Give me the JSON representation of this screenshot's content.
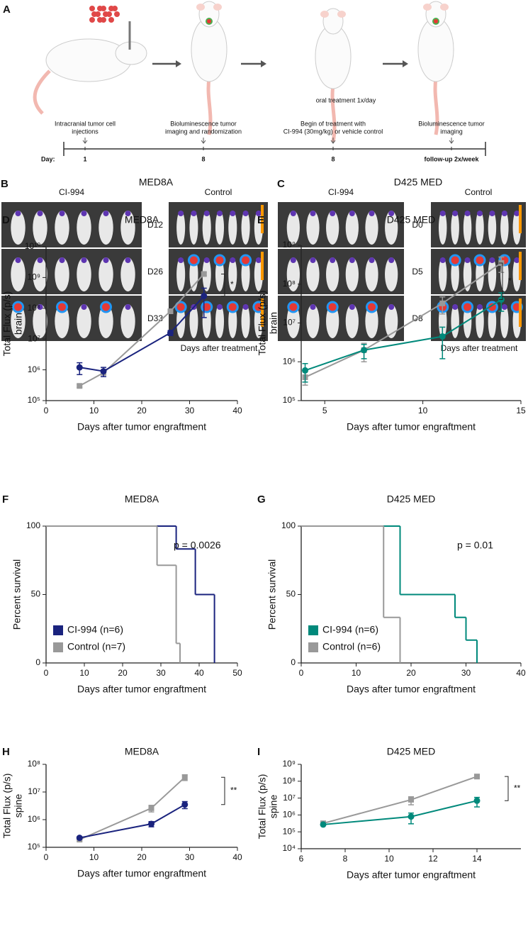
{
  "panel_a": {
    "label": "A",
    "steps": [
      [
        "Intracranial tumor cell",
        "injections"
      ],
      [
        "Bioluminescence tumor",
        "imaging and randomization"
      ],
      [
        "Begin of treatment with",
        "CI-994 (30mg/kg) or vehicle control"
      ],
      [
        "Bioluminescence tumor",
        "imaging"
      ]
    ],
    "oral": "oral treatment 1x/day",
    "timeline_label": "Day:",
    "days": [
      "1",
      "8",
      "8",
      "follow-up 2x/week"
    ]
  },
  "panel_b": {
    "label": "B",
    "title": "MED8A",
    "groups": [
      "CI-994",
      "Control"
    ],
    "days": [
      "D12",
      "D26",
      "D33"
    ],
    "footer": "Days after treatment"
  },
  "panel_c": {
    "label": "C",
    "title": "D425 MED",
    "groups": [
      "CI-994",
      "Control"
    ],
    "days": [
      "D0",
      "D5",
      "D8"
    ],
    "footer": "Days after treatment"
  },
  "chart_data": [
    {
      "type": "line",
      "panel_label": "D",
      "title": "MED8A",
      "ylabel": [
        "Total Flux (p/s)",
        "brain"
      ],
      "xlabel": "Days after tumor engraftment",
      "log_y": true,
      "xlim": [
        0,
        40
      ],
      "xticks": [
        0,
        10,
        20,
        30,
        40
      ],
      "ylim": [
        100000,
        10000000000
      ],
      "yticks": [
        {
          "value": 100000,
          "label": "10⁵"
        },
        {
          "value": 1000000,
          "label": "10⁶"
        },
        {
          "value": 10000000,
          "label": "10⁷"
        },
        {
          "value": 100000000,
          "label": "10⁸"
        },
        {
          "value": 1000000000,
          "label": "10⁹"
        },
        {
          "value": 10000000000,
          "label": "10¹⁰"
        }
      ],
      "annotation": "*",
      "series": [
        {
          "color": "#999999",
          "marker": "square",
          "x": [
            7,
            12,
            26,
            33
          ],
          "values": [
            300000,
            800000,
            80000000,
            1300000000
          ],
          "errors": [
            30000,
            100000,
            10000000,
            150000000
          ]
        },
        {
          "color": "#1a237e",
          "marker": "circle",
          "x": [
            7,
            12,
            26,
            33
          ],
          "values": [
            1200000,
            900000,
            16000000,
            250000000
          ],
          "errors": [
            500000,
            300000,
            3000000,
            200000000
          ]
        }
      ]
    },
    {
      "type": "line",
      "panel_label": "E",
      "title": "D425 MED",
      "ylabel": [
        "Total Flux (p/s)",
        "brain"
      ],
      "xlabel": "Days after tumor engraftment",
      "log_y": true,
      "xlim": [
        3.8,
        15
      ],
      "xticks": [
        5,
        10,
        15
      ],
      "ylim": [
        100000,
        1000000000
      ],
      "yticks": [
        {
          "value": 100000,
          "label": "10⁵"
        },
        {
          "value": 1000000,
          "label": "10⁶"
        },
        {
          "value": 10000000,
          "label": "10⁷"
        },
        {
          "value": 100000000,
          "label": "10⁸"
        },
        {
          "value": 1000000000,
          "label": "10⁹"
        }
      ],
      "annotation": "*",
      "series": [
        {
          "color": "#999999",
          "marker": "square",
          "x": [
            4,
            7,
            11,
            14
          ],
          "values": [
            400000,
            2000000,
            32000000,
            350000000
          ],
          "errors": [
            150000,
            1000000,
            15000000,
            150000000
          ]
        },
        {
          "color": "#00897b",
          "marker": "circle",
          "x": [
            4,
            7,
            11,
            14
          ],
          "values": [
            600000,
            2000000,
            4500000,
            40000000
          ],
          "errors": [
            300000,
            800000,
            3300000,
            20000000
          ]
        }
      ]
    },
    {
      "type": "survival",
      "panel_label": "F",
      "title": "MED8A",
      "ylabel": [
        "Percent survival"
      ],
      "xlabel": "Days after tumor engraftment",
      "xlim": [
        0,
        50
      ],
      "xticks": [
        0,
        10,
        20,
        30,
        40,
        50
      ],
      "ylim": [
        0,
        100
      ],
      "yticks": [
        0,
        50,
        100
      ],
      "annotation": "p = 0.0026",
      "legend": "lower left",
      "series": [
        {
          "name": "CI-994 (n=6)",
          "color": "#1a237e",
          "x": [
            0,
            34,
            39,
            44
          ],
          "values": [
            100,
            83.3,
            50,
            0
          ]
        },
        {
          "name": "Control (n=7)",
          "color": "#999999",
          "x": [
            0,
            29,
            34,
            35
          ],
          "values": [
            100,
            71.4,
            14.3,
            0
          ]
        }
      ]
    },
    {
      "type": "survival",
      "panel_label": "G",
      "title": "D425 MED",
      "ylabel": [
        "Percent survival"
      ],
      "xlabel": "Days after tumor engraftment",
      "xlim": [
        0,
        40
      ],
      "xticks": [
        0,
        10,
        20,
        30,
        40
      ],
      "ylim": [
        0,
        100
      ],
      "yticks": [
        0,
        50,
        100
      ],
      "annotation": "p = 0.01",
      "legend": "lower left",
      "series": [
        {
          "name": "CI-994 (n=6)",
          "color": "#00897b",
          "x": [
            0,
            18,
            28,
            30,
            32
          ],
          "values": [
            100,
            50,
            33.3,
            16.7,
            0
          ]
        },
        {
          "name": "Control (n=6)",
          "color": "#999999",
          "x": [
            0,
            15,
            18
          ],
          "values": [
            100,
            33.3,
            0
          ]
        }
      ]
    },
    {
      "type": "line",
      "panel_label": "H",
      "title": "MED8A",
      "ylabel": [
        "Total Flux (p/s)",
        "spine"
      ],
      "xlabel": "Days after tumor engraftment",
      "log_y": true,
      "xlim": [
        0,
        40
      ],
      "xticks": [
        0,
        10,
        20,
        30,
        40
      ],
      "ylim": [
        100000,
        100000000
      ],
      "yticks": [
        {
          "value": 100000,
          "label": "10⁵"
        },
        {
          "value": 1000000,
          "label": "10⁶"
        },
        {
          "value": 10000000,
          "label": "10⁷"
        },
        {
          "value": 100000000,
          "label": "10⁸"
        }
      ],
      "annotation": "**",
      "series": [
        {
          "color": "#999999",
          "marker": "square",
          "x": [
            7,
            22,
            29
          ],
          "values": [
            190000,
            2600000,
            34000000
          ],
          "errors": [
            10000,
            700000,
            8000000
          ]
        },
        {
          "color": "#1a237e",
          "marker": "circle",
          "x": [
            7,
            22,
            29
          ],
          "values": [
            220000,
            700000,
            3500000
          ],
          "errors": [
            20000,
            150000,
            1000000
          ]
        }
      ]
    },
    {
      "type": "line",
      "panel_label": "I",
      "title": "D425 MED",
      "ylabel": [
        "Total Flux (p/s)",
        "spine"
      ],
      "xlabel": "Days after tumor engraftment",
      "log_y": true,
      "xlim": [
        6,
        16
      ],
      "xticks": [
        6,
        8,
        10,
        12,
        14
      ],
      "ylim": [
        10000,
        1000000000
      ],
      "yticks": [
        {
          "value": 10000,
          "label": "10⁴"
        },
        {
          "value": 100000,
          "label": "10⁵"
        },
        {
          "value": 1000000,
          "label": "10⁶"
        },
        {
          "value": 10000000,
          "label": "10⁷"
        },
        {
          "value": 100000000,
          "label": "10⁸"
        },
        {
          "value": 1000000000,
          "label": "10⁹"
        }
      ],
      "annotation": "**",
      "series": [
        {
          "color": "#999999",
          "marker": "square",
          "x": [
            7,
            11,
            14
          ],
          "values": [
            320000,
            8000000,
            190000000
          ],
          "errors": [
            30000,
            4000000,
            50000000
          ]
        },
        {
          "color": "#00897b",
          "marker": "circle",
          "x": [
            7,
            11,
            14
          ],
          "values": [
            270000,
            800000,
            7000000
          ],
          "errors": [
            30000,
            500000,
            4000000
          ]
        }
      ]
    }
  ]
}
